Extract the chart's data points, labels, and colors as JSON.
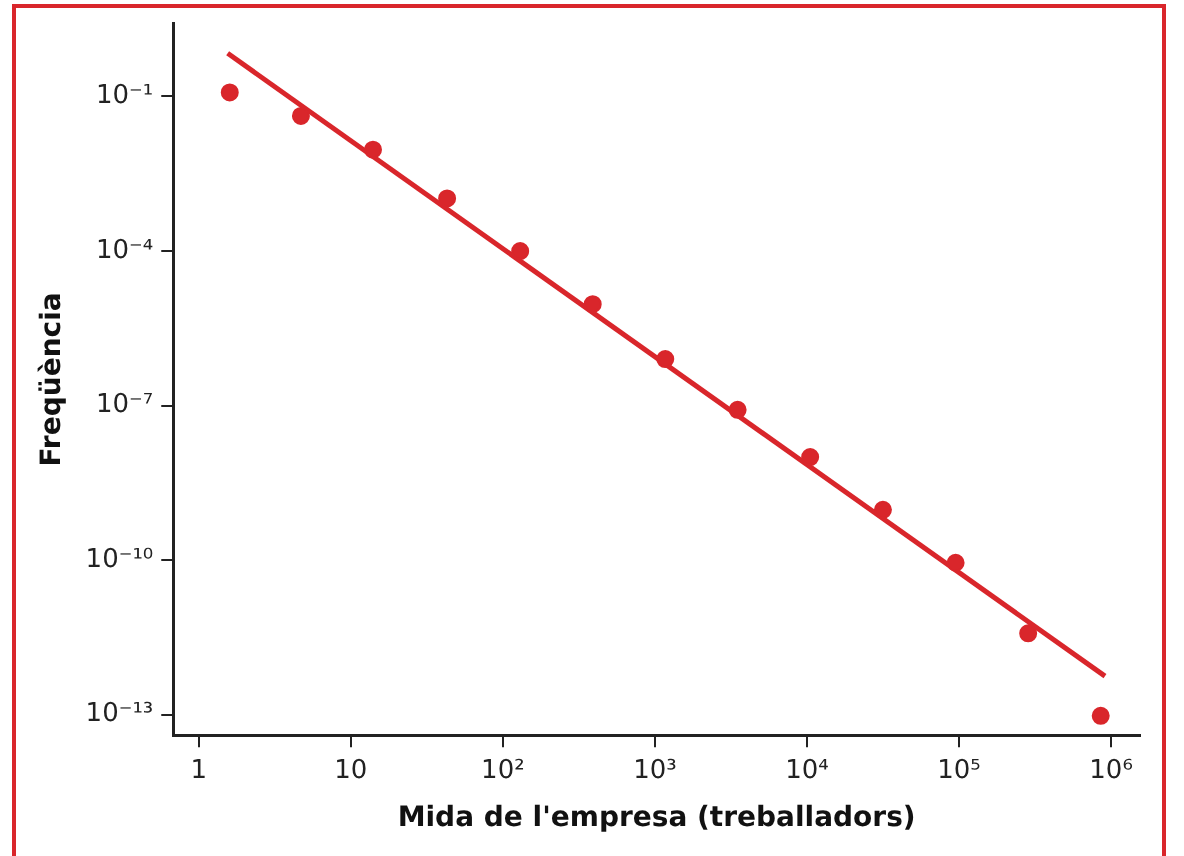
{
  "chart_data": {
    "type": "scatter",
    "xlabel": "Mida de l'empresa (treballadors)",
    "ylabel": "Freqüència",
    "log": "xy",
    "grid": false,
    "legend": false,
    "xlim": [
      0.68,
      1550000
    ],
    "ylim": [
      4e-14,
      2.6
    ],
    "xticks": [
      1,
      10,
      {
        "value": 100,
        "label": "10²"
      },
      {
        "value": 1000,
        "label": "10³"
      },
      {
        "value": 10000,
        "label": "10⁴"
      },
      {
        "value": 100000,
        "label": "10⁵"
      },
      {
        "value": 1000000,
        "label": "10⁶"
      }
    ],
    "yticks": [
      {
        "value": 0.1,
        "label": "10⁻¹"
      },
      {
        "value": 0.0001,
        "label": "10⁻⁴"
      },
      {
        "value": 1e-07,
        "label": "10⁻⁷"
      },
      {
        "value": 1e-10,
        "label": "10⁻¹⁰"
      },
      {
        "value": 1e-13,
        "label": "10⁻¹³"
      }
    ],
    "series": [
      {
        "marker": "circle",
        "color": "#d9262b",
        "x": [
          1.6,
          4.7,
          14,
          43,
          130,
          390,
          1170,
          3500,
          10500,
          31600,
          95000,
          285000,
          855000
        ],
        "values": [
          0.12,
          0.042,
          0.0093,
          0.00105,
          0.0001,
          9.3e-06,
          8e-07,
          8.3e-08,
          1e-08,
          9.5e-10,
          8.9e-11,
          3.8e-12,
          9.5e-14
        ]
      },
      {
        "type": "line",
        "color": "#d9262b",
        "line_style": "solid",
        "x": [
          1.55,
          912000
        ],
        "values": [
          0.69,
          5.6e-13
        ]
      }
    ]
  }
}
